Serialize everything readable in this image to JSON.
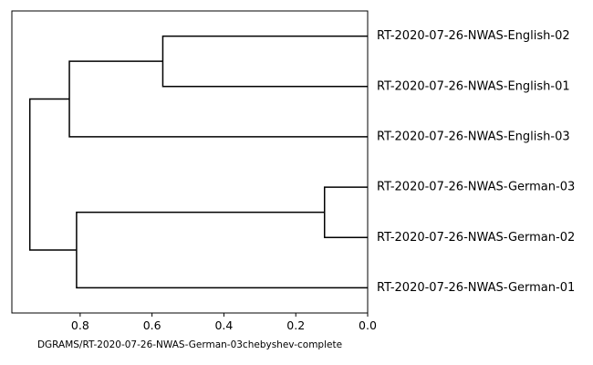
{
  "chart_data": {
    "type": "dendrogram",
    "orientation": "left",
    "xlabel": "DGRAMS/RT-2020-07-26-NWAS-German-03chebyshev-complete",
    "ylabel": "",
    "title": "",
    "xlim": [
      0.99,
      0.0
    ],
    "xticks": [
      0.8,
      0.6,
      0.4,
      0.2,
      0.0
    ],
    "xtick_labels": [
      "0.8",
      "0.6",
      "0.4",
      "0.2",
      "0.0"
    ],
    "grid": false,
    "leaves": [
      "RT-2020-07-26-NWAS-English-02",
      "RT-2020-07-26-NWAS-English-01",
      "RT-2020-07-26-NWAS-English-03",
      "RT-2020-07-26-NWAS-German-03",
      "RT-2020-07-26-NWAS-German-02",
      "RT-2020-07-26-NWAS-German-01"
    ],
    "merges": [
      {
        "id": "m1",
        "left": 0,
        "right": 1,
        "height": 0.57
      },
      {
        "id": "m2",
        "left": "m1",
        "right": 2,
        "height": 0.83
      },
      {
        "id": "m3",
        "left": 3,
        "right": 4,
        "height": 0.12
      },
      {
        "id": "m4",
        "left": "m3",
        "right": 5,
        "height": 0.81
      },
      {
        "id": "m5",
        "left": "m2",
        "right": "m4",
        "height": 0.94
      }
    ]
  }
}
